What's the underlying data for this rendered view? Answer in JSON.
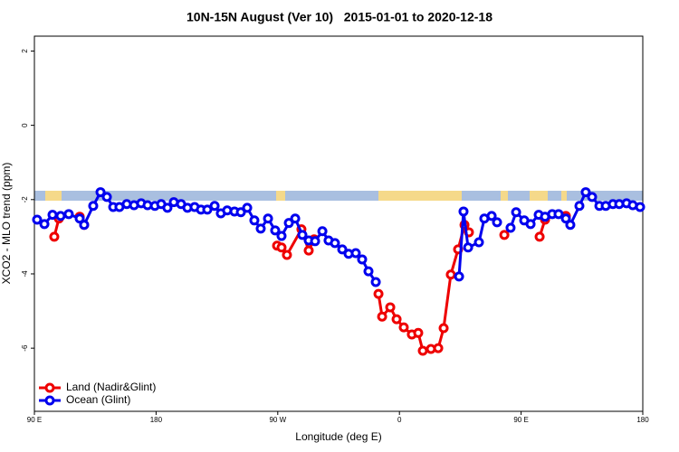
{
  "chart_data": {
    "type": "line",
    "title": "10N-15N August (Ver 10)   2015-01-01 to 2020-12-18",
    "x_label": "Longitude (deg E)",
    "y_label": "XCO2 - MLO trend (ppm)",
    "xlim": [
      90,
      540
    ],
    "ylim": [
      -7.7,
      2.4
    ],
    "xticks": [
      {
        "value": 90,
        "label": "90 E"
      },
      180,
      {
        "value": 270,
        "label": "90 W"
      },
      {
        "value": 360,
        "label": "0"
      },
      {
        "value": 450,
        "label": "90 E"
      },
      {
        "value": 540,
        "label": "180"
      }
    ],
    "yticks": [
      2,
      0,
      -2,
      -4,
      -6
    ],
    "legend": "bottom-left",
    "series": [
      {
        "name": "Land (Nadir&Glint)",
        "color": "#ee0000",
        "x": [
          104.7,
          108.1,
          null,
          123.5,
          126.8,
          null,
          269.5,
          272.8,
          276.8,
          287.5,
          292.9,
          296.9,
          null,
          344.5,
          347.2,
          353.2,
          357.9,
          363.2,
          369.2,
          373.9,
          377.3,
          383.3,
          388.7,
          392.7,
          398.0,
          403.4,
          408.1,
          411.4,
          null,
          437.6,
          null,
          463.7,
          467.7,
          null,
          483.1
        ],
        "values": [
          -3.0,
          -2.51,
          null,
          -2.46,
          -2.68,
          null,
          -3.24,
          -3.29,
          -3.49,
          -2.8,
          -3.37,
          -3.07,
          null,
          -4.54,
          -5.15,
          -4.9,
          -5.22,
          -5.44,
          -5.63,
          -5.59,
          -6.07,
          -6.02,
          -6.0,
          -5.46,
          -4.02,
          -3.34,
          -2.68,
          -2.88,
          null,
          -2.95,
          null,
          -3.0,
          -2.54,
          null,
          -2.44
        ]
      },
      {
        "name": "Ocean (Glint)",
        "color": "#0000ee",
        "x": [
          92.0,
          97.4,
          103.4,
          109.4,
          115.4,
          123.5,
          126.8,
          133.5,
          138.9,
          143.6,
          148.3,
          152.9,
          158.3,
          163.7,
          169.0,
          173.7,
          179.1,
          183.8,
          188.4,
          193.1,
          198.5,
          203.2,
          208.5,
          213.2,
          217.9,
          223.3,
          227.9,
          232.6,
          238.0,
          242.7,
          247.4,
          252.7,
          257.4,
          262.8,
          268.1,
          272.8,
          278.2,
          282.9,
          288.2,
          292.9,
          297.6,
          303.0,
          307.6,
          312.3,
          317.7,
          322.4,
          327.7,
          332.4,
          337.1,
          342.5,
          null,
          404.1,
          407.4,
          410.8,
          418.8,
          422.8,
          428.2,
          432.2,
          null,
          442.2,
          446.3,
          452.3,
          457.0,
          463.0,
          467.7,
          473.0,
          477.7,
          483.1,
          486.4,
          493.1,
          497.8,
          502.5,
          507.9,
          512.6,
          517.9,
          522.6,
          528.0,
          532.6,
          538.0
        ],
        "values": [
          -2.54,
          -2.66,
          -2.41,
          -2.44,
          -2.39,
          -2.51,
          -2.68,
          -2.17,
          -1.8,
          -1.93,
          -2.2,
          -2.2,
          -2.12,
          -2.15,
          -2.1,
          -2.15,
          -2.17,
          -2.12,
          -2.22,
          -2.07,
          -2.12,
          -2.22,
          -2.2,
          -2.27,
          -2.27,
          -2.17,
          -2.37,
          -2.29,
          -2.32,
          -2.34,
          -2.22,
          -2.56,
          -2.78,
          -2.51,
          -2.83,
          -2.98,
          -2.63,
          -2.51,
          -2.95,
          -3.1,
          -3.12,
          -2.85,
          -3.1,
          -3.17,
          -3.34,
          -3.46,
          -3.44,
          -3.61,
          -3.93,
          -4.22,
          null,
          -4.07,
          -2.32,
          -3.29,
          -3.15,
          -2.51,
          -2.44,
          -2.61,
          null,
          -2.76,
          -2.34,
          -2.56,
          -2.66,
          -2.41,
          -2.46,
          -2.39,
          -2.39,
          -2.51,
          -2.68,
          -2.17,
          -1.8,
          -1.93,
          -2.17,
          -2.17,
          -2.12,
          -2.12,
          -2.1,
          -2.15,
          -2.2
        ]
      }
    ]
  }
}
